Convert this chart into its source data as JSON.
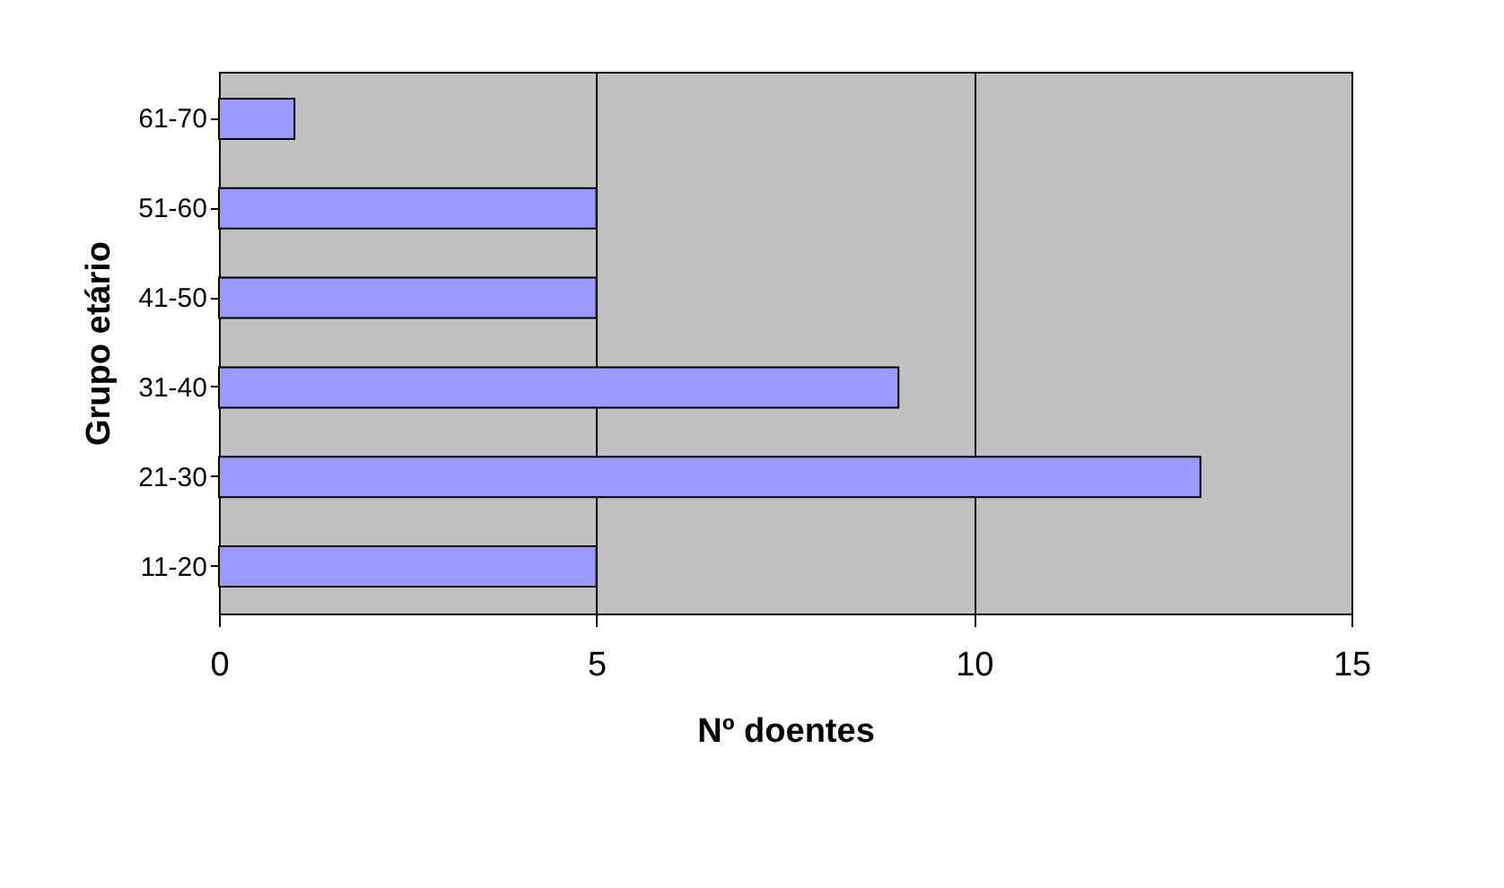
{
  "chart_data": {
    "type": "bar",
    "orientation": "horizontal",
    "categories": [
      "61-70",
      "51-60",
      "41-50",
      "31-40",
      "21-30",
      "11-20"
    ],
    "values": [
      1,
      5,
      5,
      9,
      13,
      5
    ],
    "color": "#9999ff",
    "xlabel": "Nº doentes",
    "ylabel": "Grupo etário",
    "xlim": [
      0,
      15
    ],
    "xticks": [
      0,
      5,
      10,
      15
    ],
    "grid": "x"
  }
}
